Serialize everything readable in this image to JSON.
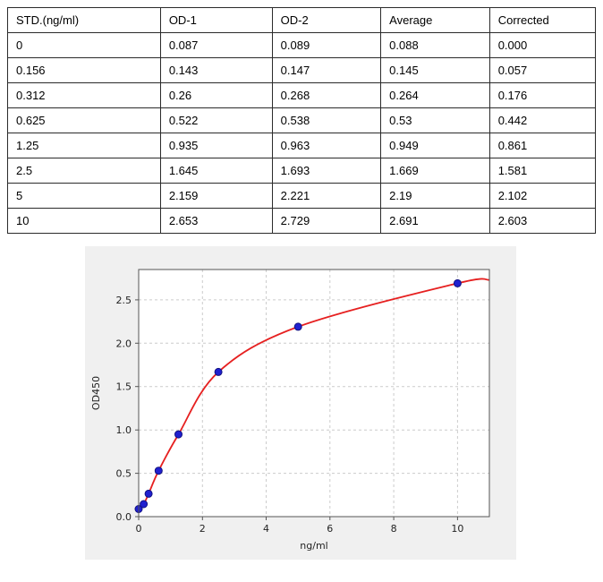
{
  "table": {
    "headers": [
      "STD.(ng/ml)",
      "OD-1",
      "OD-2",
      "Average",
      "Corrected"
    ],
    "rows": [
      [
        "0",
        "0.087",
        "0.089",
        "0.088",
        "0.000"
      ],
      [
        "0.156",
        "0.143",
        "0.147",
        "0.145",
        "0.057"
      ],
      [
        "0.312",
        "0.26",
        "0.268",
        "0.264",
        "0.176"
      ],
      [
        "0.625",
        "0.522",
        "0.538",
        "0.53",
        "0.442"
      ],
      [
        "1.25",
        "0.935",
        "0.963",
        "0.949",
        "0.861"
      ],
      [
        "2.5",
        "1.645",
        "1.693",
        "1.669",
        "1.581"
      ],
      [
        "5",
        "2.159",
        "2.221",
        "2.19",
        "2.102"
      ],
      [
        "10",
        "2.653",
        "2.729",
        "2.691",
        "2.603"
      ]
    ]
  },
  "chart_data": {
    "type": "scatter",
    "title": "",
    "xlabel": "ng/ml",
    "ylabel": "OD450",
    "x": [
      0,
      0.156,
      0.312,
      0.625,
      1.25,
      2.5,
      5,
      10
    ],
    "y": [
      0.088,
      0.145,
      0.264,
      0.53,
      0.949,
      1.669,
      2.19,
      2.691
    ],
    "fit_curve": "smooth standard-curve fit drawn through the data points",
    "curve_endpoint": {
      "x": 11,
      "y": 2.73
    },
    "xlim": [
      0,
      11
    ],
    "ylim": [
      0,
      2.85
    ],
    "xticks": [
      0,
      2,
      4,
      6,
      8,
      10
    ],
    "xtick_labels": [
      "0",
      "2",
      "4",
      "6",
      "8",
      "10"
    ],
    "yticks": [
      0,
      0.5,
      1,
      1.5,
      2,
      2.5
    ],
    "ytick_labels": [
      "0.0",
      "0.5",
      "1.0",
      "1.5",
      "2.0",
      "2.5"
    ],
    "grid": true,
    "grid_style": "dashed",
    "legend": "none",
    "colors": {
      "curve": "#e62020",
      "points": "#2020cf",
      "point_edge": "#101080",
      "figure_bg": "#f0f0f0",
      "plot_bg": "#ffffff",
      "grid": "#cccccc",
      "axis": "#555555"
    }
  }
}
